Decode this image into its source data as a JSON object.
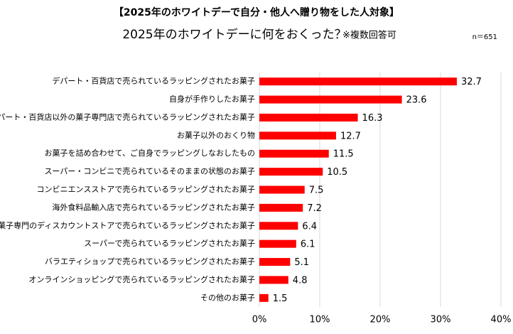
{
  "chart_data": {
    "type": "bar",
    "orientation": "horizontal",
    "title": "【2025年のホワイトデーで自分・他人へ贈り物をした人対象】",
    "subtitle": "2025年のホワイトデーに何をおくった？",
    "note": "※複数回答可",
    "sample_size": "n＝651",
    "categories": [
      "デパート・百貨店で売られているラッピングされたお菓子",
      "自身が手作りしたお菓子",
      "デパート・百貨店以外の菓子専門店で売られているラッピングされたお菓子",
      "お菓子以外のおくり物",
      "お菓子を詰め合わせて、ご自身でラッピングしなおしたもの",
      "スーパー・コンビニで売られているそのままの状態のお菓子",
      "コンビニエンスストアで売られているラッピングされたお菓子",
      "海外食料品輸入店で売られているラッピングされたお菓子",
      "菓子専門のディスカウントストアで売られているラッピングされたお菓子",
      "スーパーで売られているラッピングされたお菓子",
      "バラエティショップで売られているラッピングされたお菓子",
      "オンラインショッピングで売られているラッピングされたお菓子",
      "その他のお菓子"
    ],
    "values": [
      32.7,
      23.6,
      16.3,
      12.7,
      11.5,
      10.5,
      7.5,
      7.2,
      6.4,
      6.1,
      5.1,
      4.8,
      1.5
    ],
    "color": "#ff0000",
    "xlim": [
      0,
      40
    ],
    "xticks": [
      {
        "value": 0,
        "label": "0%"
      },
      {
        "value": 10,
        "label": "10%"
      },
      {
        "value": 20,
        "label": "20%"
      },
      {
        "value": 30,
        "label": "30%"
      },
      {
        "value": 40,
        "label": "40%"
      }
    ],
    "grid": true
  }
}
